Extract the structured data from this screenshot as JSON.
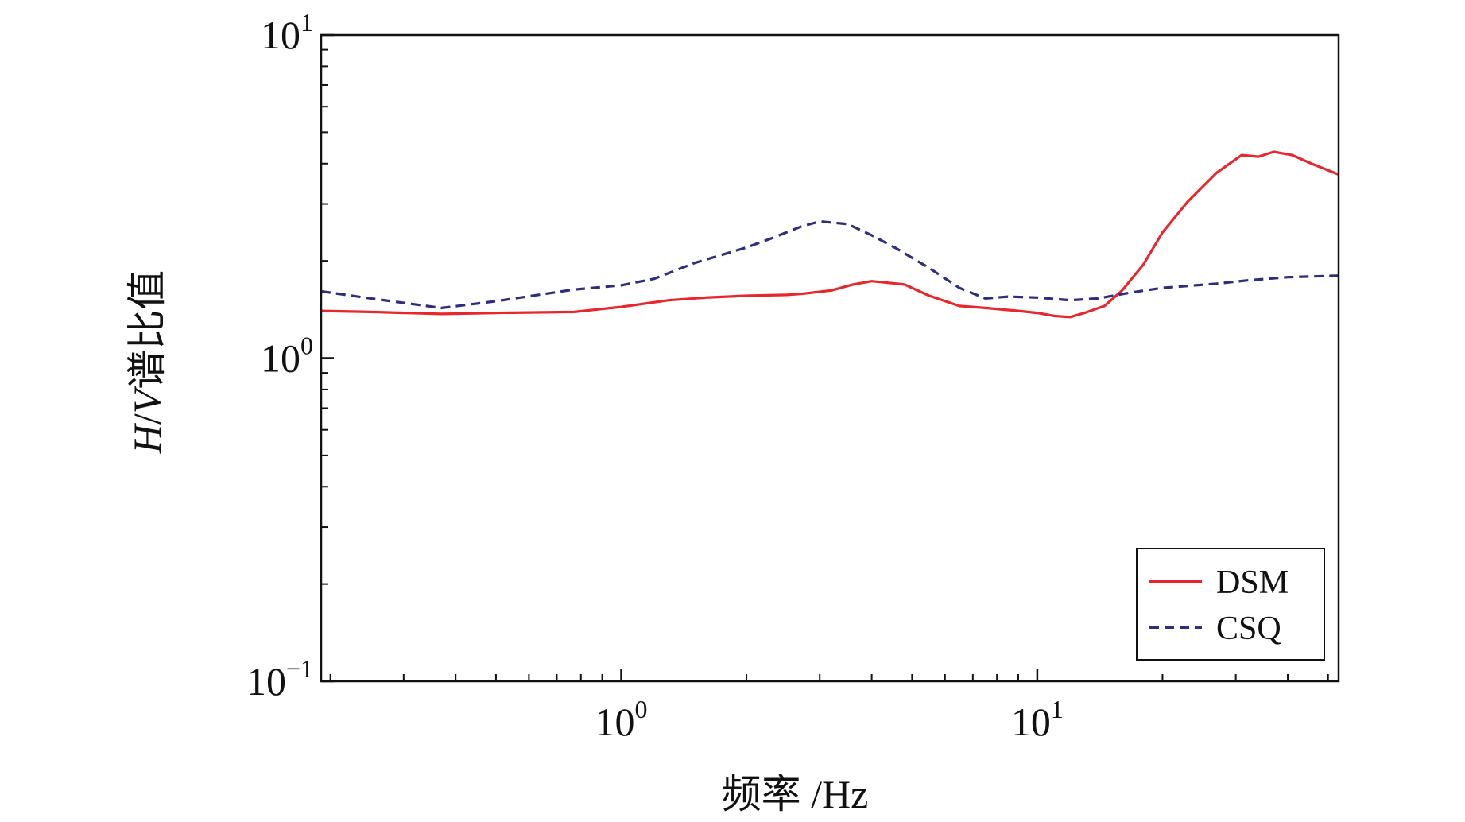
{
  "chart_data": {
    "type": "line",
    "xlabel": "频率 /Hz",
    "ylabel_italic_h": "H",
    "ylabel_slash": "/",
    "ylabel_italic_v": "V",
    "ylabel_rest": "谱比值",
    "x_scale": "log",
    "y_scale": "log",
    "xlim": [
      0.19,
      53
    ],
    "ylim": [
      0.1,
      10
    ],
    "x_ticks": [
      {
        "base": "10",
        "exp": "0",
        "value": 1
      },
      {
        "base": "10",
        "exp": "1",
        "value": 10
      }
    ],
    "y_ticks": [
      {
        "base": "10",
        "exp": "−1",
        "value": 0.1
      },
      {
        "base": "10",
        "exp": "0",
        "value": 1
      },
      {
        "base": "10",
        "exp": "1",
        "value": 10
      }
    ],
    "grid": false,
    "legend_position": "bottom-right",
    "series": [
      {
        "name": "DSM",
        "color": "#e8262b",
        "dash": "solid",
        "points": [
          [
            0.19,
            1.4
          ],
          [
            0.25,
            1.39
          ],
          [
            0.37,
            1.37
          ],
          [
            0.5,
            1.38
          ],
          [
            0.77,
            1.39
          ],
          [
            1.0,
            1.44
          ],
          [
            1.3,
            1.51
          ],
          [
            1.6,
            1.54
          ],
          [
            2.0,
            1.56
          ],
          [
            2.5,
            1.57
          ],
          [
            2.7,
            1.58
          ],
          [
            3.2,
            1.62
          ],
          [
            3.6,
            1.69
          ],
          [
            4.0,
            1.73
          ],
          [
            4.4,
            1.71
          ],
          [
            4.8,
            1.69
          ],
          [
            5.5,
            1.56
          ],
          [
            6.5,
            1.45
          ],
          [
            7.5,
            1.43
          ],
          [
            9.0,
            1.4
          ],
          [
            10.0,
            1.38
          ],
          [
            11.0,
            1.35
          ],
          [
            12.0,
            1.34
          ],
          [
            13.0,
            1.38
          ],
          [
            14.5,
            1.45
          ],
          [
            16.0,
            1.62
          ],
          [
            18.0,
            1.95
          ],
          [
            20.0,
            2.45
          ],
          [
            23.0,
            3.05
          ],
          [
            27.0,
            3.75
          ],
          [
            31.0,
            4.25
          ],
          [
            34.0,
            4.2
          ],
          [
            37.0,
            4.35
          ],
          [
            41.0,
            4.25
          ],
          [
            46.0,
            3.98
          ],
          [
            53.0,
            3.7
          ]
        ]
      },
      {
        "name": "CSQ",
        "color": "#2e2d7f",
        "dash": "dashed",
        "points": [
          [
            0.19,
            1.61
          ],
          [
            0.25,
            1.53
          ],
          [
            0.37,
            1.43
          ],
          [
            0.5,
            1.5
          ],
          [
            0.77,
            1.63
          ],
          [
            1.0,
            1.68
          ],
          [
            1.2,
            1.76
          ],
          [
            1.5,
            1.97
          ],
          [
            2.0,
            2.2
          ],
          [
            2.3,
            2.35
          ],
          [
            2.7,
            2.55
          ],
          [
            3.0,
            2.65
          ],
          [
            3.5,
            2.6
          ],
          [
            4.0,
            2.4
          ],
          [
            4.6,
            2.18
          ],
          [
            5.5,
            1.9
          ],
          [
            6.5,
            1.65
          ],
          [
            7.5,
            1.53
          ],
          [
            8.5,
            1.55
          ],
          [
            10.0,
            1.54
          ],
          [
            12.0,
            1.51
          ],
          [
            14.0,
            1.53
          ],
          [
            17.0,
            1.6
          ],
          [
            20.0,
            1.65
          ],
          [
            24.0,
            1.68
          ],
          [
            27.0,
            1.7
          ],
          [
            32.0,
            1.74
          ],
          [
            40.0,
            1.78
          ],
          [
            53.0,
            1.8
          ]
        ]
      }
    ]
  }
}
